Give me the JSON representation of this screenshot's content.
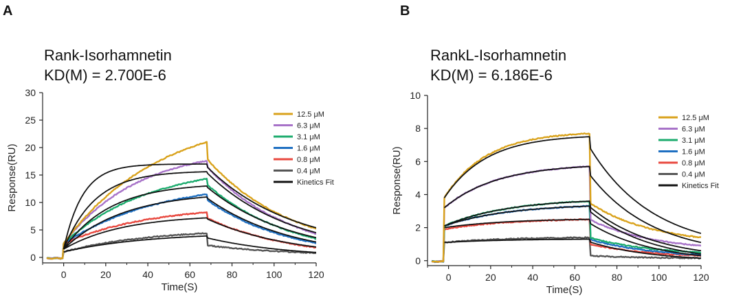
{
  "panel_labels": [
    "A",
    "B"
  ],
  "chart_data": [
    {
      "type": "line",
      "title": "Rank-Isorhamnetin",
      "subtitle": "KD(M) = 2.700E-6",
      "xlabel": "Time(S)",
      "ylabel": "Response(RU)",
      "xlim": [
        -10,
        120
      ],
      "ylim": [
        -1,
        30
      ],
      "x_ticks": [
        0,
        20,
        40,
        60,
        80,
        100,
        120
      ],
      "y_ticks": [
        0,
        5,
        10,
        15,
        20,
        25,
        30
      ],
      "assoc_start": 0,
      "dissoc_start": 68,
      "grid": false,
      "legend_position": "right",
      "legend": [
        "12.5 μM",
        "6.3 μM",
        "3.1 μM",
        "1.6 μM",
        "0.8 μM",
        "0.4 μM",
        "Kinetics Fit"
      ],
      "series": [
        {
          "name": "12.5 μM",
          "color": "#d9a21b",
          "r_start": 2.5,
          "r_end": 21.0,
          "tau_on": 45,
          "jump": 0.0,
          "d_jump": 3.0,
          "tau_off": 40,
          "r_final": 5.2,
          "fit_start": 1.5,
          "fit_end": 17.0,
          "fit_tau": 9,
          "fit_final": 5.4
        },
        {
          "name": "6.3 μM",
          "color": "#a772c8",
          "r_start": 2.5,
          "r_end": 17.6,
          "tau_on": 35,
          "jump": 0.0,
          "d_jump": 1.0,
          "tau_off": 40,
          "r_final": 4.3,
          "fit_start": 1.5,
          "fit_end": 15.6,
          "fit_tau": 15,
          "fit_final": 4.5
        },
        {
          "name": "3.1 μM",
          "color": "#1bab6d",
          "r_start": 2.5,
          "r_end": 14.3,
          "tau_on": 40,
          "jump": 0.0,
          "d_jump": 1.0,
          "tau_off": 40,
          "r_final": 3.4,
          "fit_start": 1.5,
          "fit_end": 13.0,
          "fit_tau": 22,
          "fit_final": 3.6
        },
        {
          "name": "1.6 μM",
          "color": "#1e6fc1",
          "r_start": 2.5,
          "r_end": 11.5,
          "tau_on": 45,
          "jump": 0.0,
          "d_jump": 1.0,
          "tau_off": 40,
          "r_final": 2.6,
          "fit_start": 1.5,
          "fit_end": 11.0,
          "fit_tau": 28,
          "fit_final": 2.8
        },
        {
          "name": "0.8 μM",
          "color": "#e8483f",
          "r_start": 2.5,
          "r_end": 8.2,
          "tau_on": 40,
          "jump": 0.0,
          "d_jump": 1.0,
          "tau_off": 40,
          "r_final": 1.8,
          "fit_start": 1.5,
          "fit_end": 7.2,
          "fit_tau": 28,
          "fit_final": 1.9
        },
        {
          "name": "0.4 μM",
          "color": "#555555",
          "r_start": 1.0,
          "r_end": 4.4,
          "tau_on": 40,
          "jump": 0.0,
          "d_jump": 2.2,
          "tau_off": 40,
          "r_final": 0.8,
          "fit_start": 1.0,
          "fit_end": 3.9,
          "fit_tau": 40,
          "fit_final": 0.9
        }
      ]
    },
    {
      "type": "line",
      "title": "RankL-Isorhamnetin",
      "subtitle": "KD(M) =   6.186E-6",
      "xlabel": "Time(S)",
      "ylabel": "Response(RU)",
      "xlim": [
        -10,
        120
      ],
      "ylim": [
        -0.3,
        10
      ],
      "x_ticks": [
        0,
        20,
        40,
        60,
        80,
        100,
        120
      ],
      "y_ticks": [
        0,
        2,
        4,
        6,
        8,
        10
      ],
      "assoc_start": -2,
      "dissoc_start": 67,
      "grid": false,
      "legend_position": "right",
      "legend": [
        "12.5 μM",
        "6.3 μM",
        "3.1 μM",
        "1.6 μM",
        "0.8 μM",
        "0.4 μM",
        "Kinetics Fit"
      ],
      "series": [
        {
          "name": "12.5 μM",
          "color": "#d9a21b",
          "r_start": 3.8,
          "r_end": 7.7,
          "tau_on": 20,
          "jump": 3.8,
          "d_jump": 4.2,
          "tau_off": 30,
          "r_final": 1.4,
          "fit_start": 3.8,
          "fit_end": 7.5,
          "fit_tau": 20,
          "fit_final": 1.65
        },
        {
          "name": "6.3 μM",
          "color": "#a772c8",
          "r_start": 3.2,
          "r_end": 5.7,
          "tau_on": 25,
          "jump": 3.2,
          "d_jump": 3.2,
          "tau_off": 30,
          "r_final": 0.9,
          "fit_start": 3.2,
          "fit_end": 5.7,
          "fit_tau": 25,
          "fit_final": 1.1
        },
        {
          "name": "3.1 μM",
          "color": "#1bab6d",
          "r_start": 2.1,
          "r_end": 3.6,
          "tau_on": 30,
          "jump": 2.1,
          "d_jump": 2.2,
          "tau_off": 30,
          "r_final": 0.5,
          "fit_start": 2.1,
          "fit_end": 3.6,
          "fit_tau": 30,
          "fit_final": 0.6
        },
        {
          "name": "1.6 μM",
          "color": "#1e6fc1",
          "r_start": 2.1,
          "r_end": 3.3,
          "tau_on": 30,
          "jump": 2.1,
          "d_jump": 2.0,
          "tau_off": 30,
          "r_final": 0.35,
          "fit_start": 2.1,
          "fit_end": 3.3,
          "fit_tau": 30,
          "fit_final": 0.4
        },
        {
          "name": "0.8 μM",
          "color": "#e8483f",
          "r_start": 1.9,
          "r_end": 2.5,
          "tau_on": 30,
          "jump": 1.9,
          "d_jump": 1.5,
          "tau_off": 30,
          "r_final": 0.3,
          "fit_start": 2.0,
          "fit_end": 2.5,
          "fit_tau": 30,
          "fit_final": 0.3
        },
        {
          "name": "0.4 μM",
          "color": "#555555",
          "r_start": 1.1,
          "r_end": 1.4,
          "tau_on": 30,
          "jump": 1.1,
          "d_jump": 1.1,
          "tau_off": 30,
          "r_final": 0.15,
          "fit_start": 1.1,
          "fit_end": 1.3,
          "fit_tau": 30,
          "fit_final": 0.15
        }
      ]
    }
  ]
}
